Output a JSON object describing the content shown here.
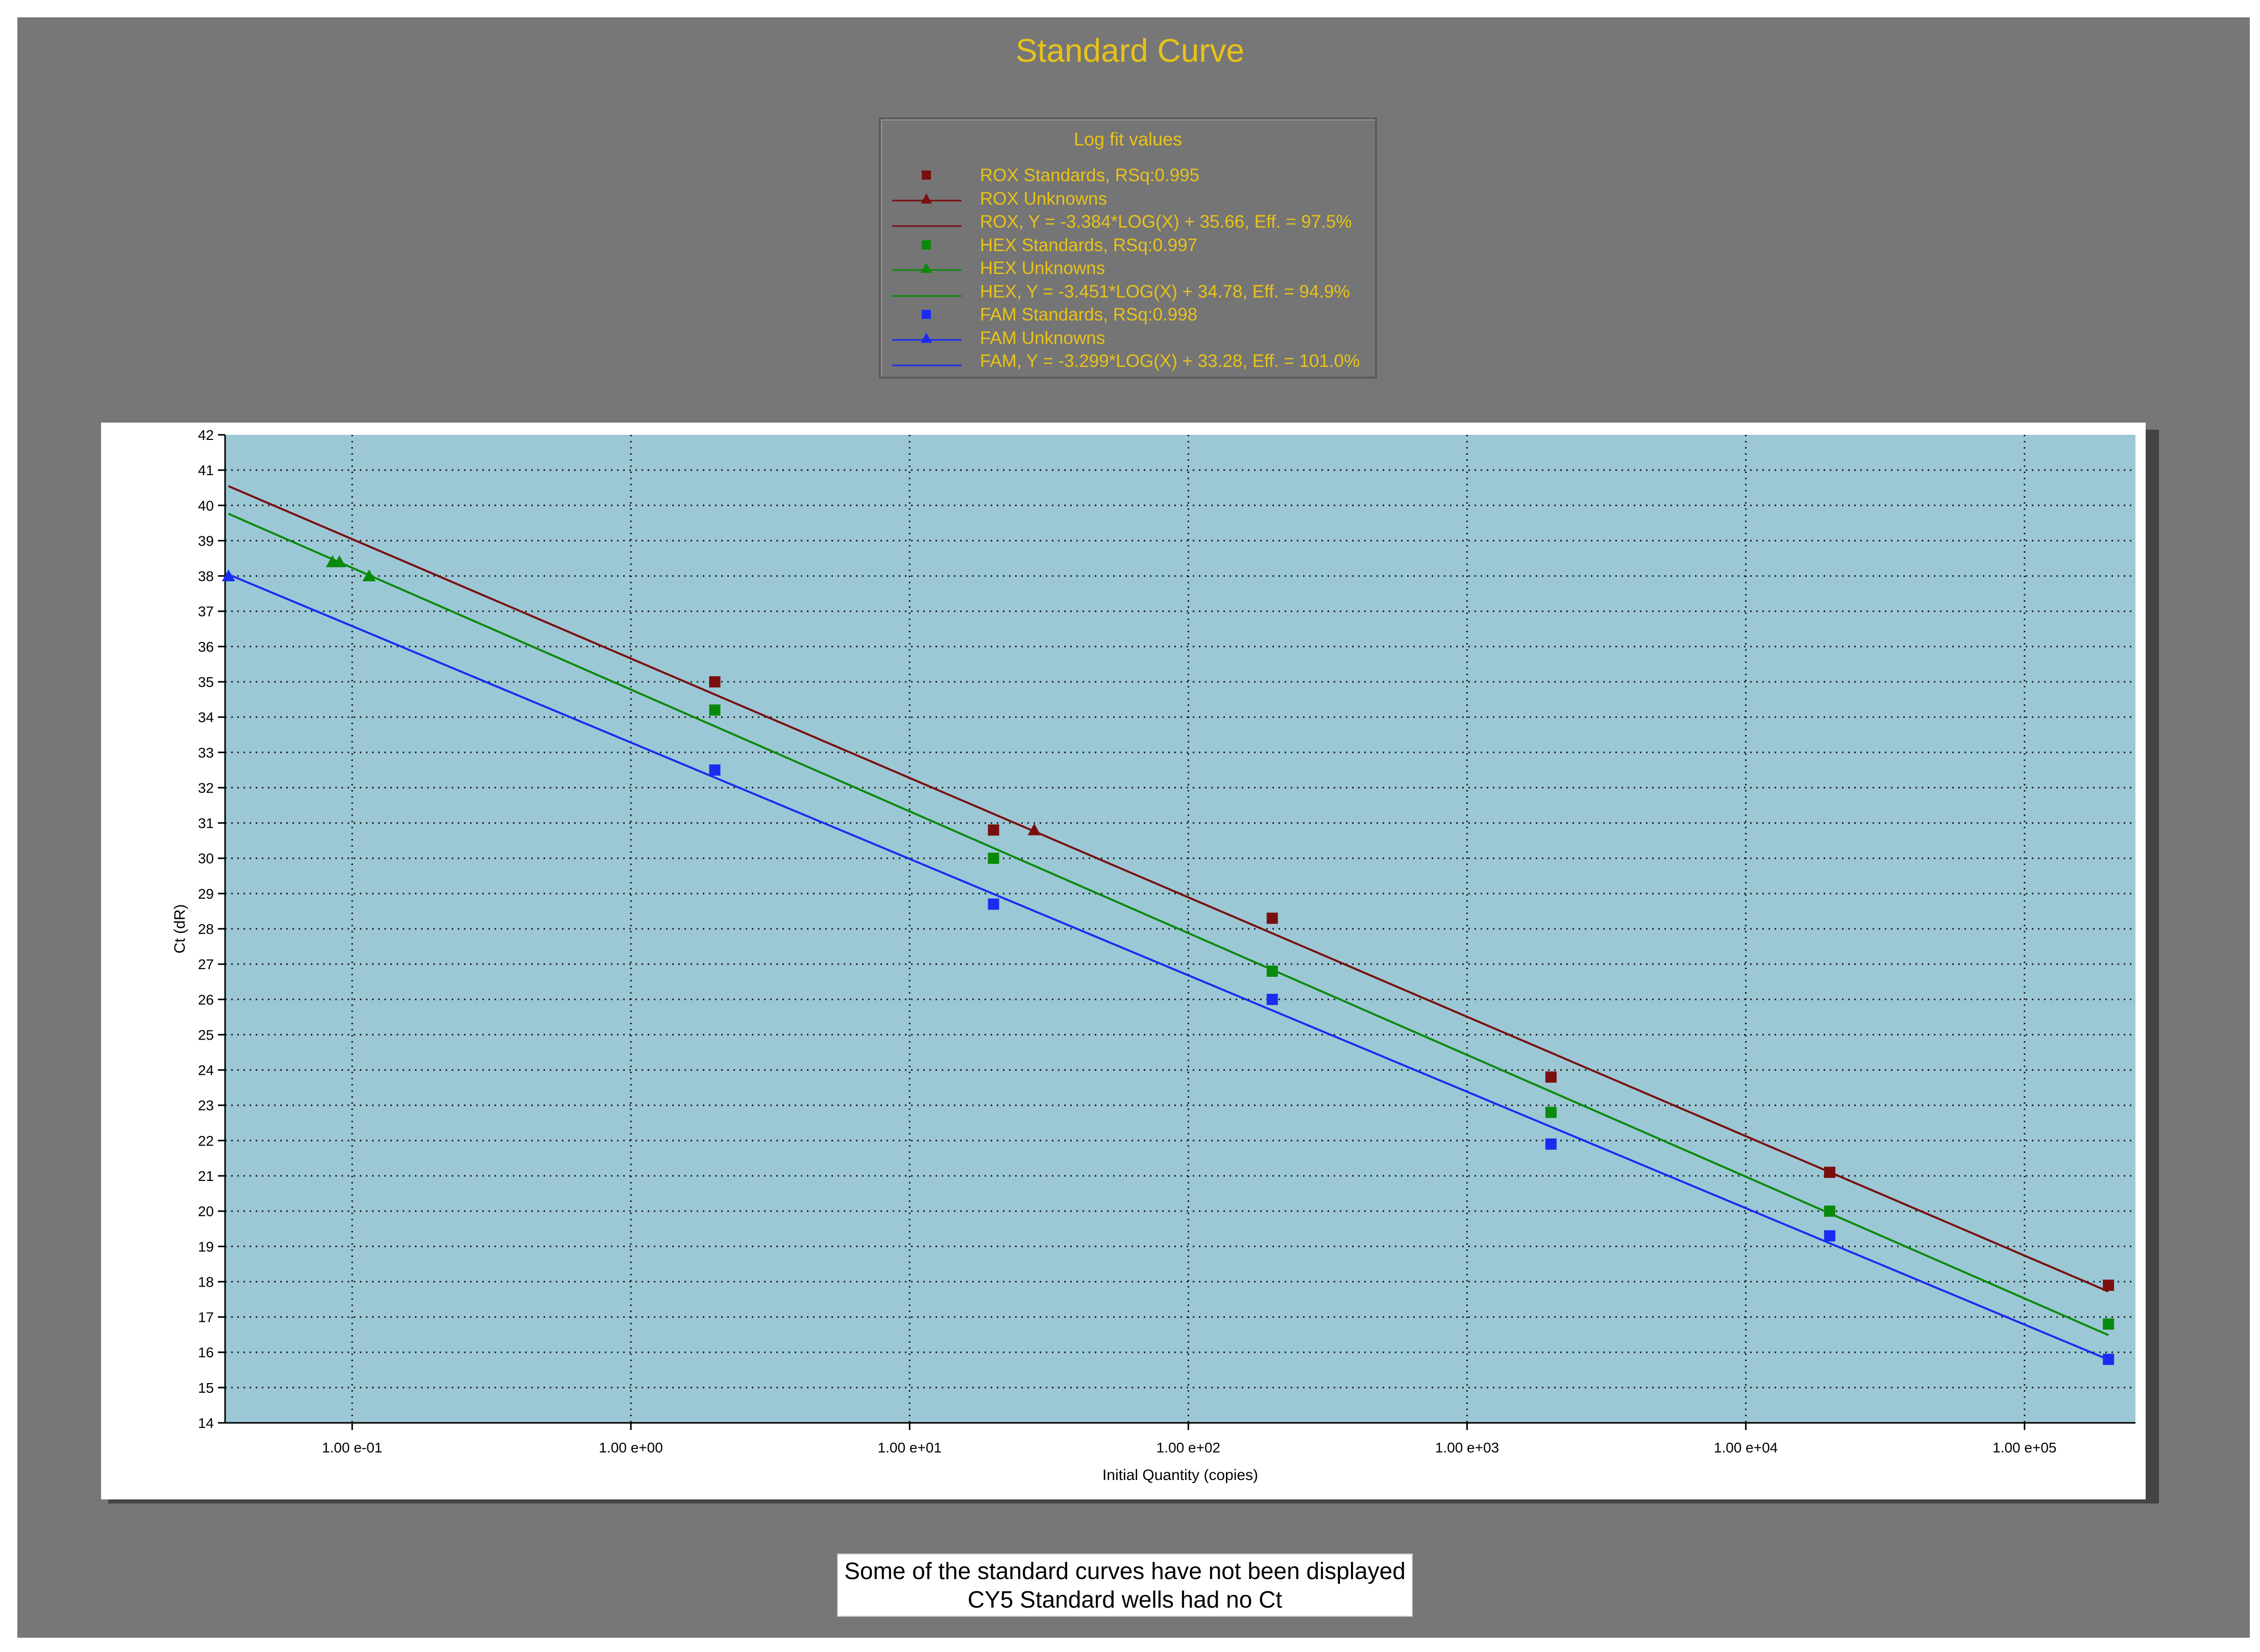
{
  "chart_data": {
    "type": "scatter",
    "title": "Standard Curve",
    "xlabel": "Initial Quantity (copies)",
    "ylabel": "Ct (dR)",
    "x_scale": "log",
    "xlim": [
      0.035,
      250000
    ],
    "ylim": [
      14,
      42
    ],
    "grid": true,
    "x_tick_values": [
      0.1,
      1,
      10,
      100,
      1000,
      10000,
      100000
    ],
    "x_tick_labels": [
      "1.00 e-01",
      "1.00 e+00",
      "1.00 e+01",
      "1.00 e+02",
      "1.00 e+03",
      "1.00 e+04",
      "1.00 e+05"
    ],
    "y_ticks": [
      14,
      15,
      16,
      17,
      18,
      19,
      20,
      21,
      22,
      23,
      24,
      25,
      26,
      27,
      28,
      29,
      30,
      31,
      32,
      33,
      34,
      35,
      36,
      37,
      38,
      39,
      40,
      41,
      42
    ],
    "legend_title": "Log fit values",
    "legend_placement": "top-center",
    "series": [
      {
        "name": "ROX Standards, RSq:0.995",
        "kind": "points",
        "marker": "square",
        "color": "#7a0f0f",
        "points": [
          [
            2,
            35.0
          ],
          [
            20,
            30.8
          ],
          [
            200,
            28.3
          ],
          [
            2000,
            23.8
          ],
          [
            20000,
            21.1
          ],
          [
            200000,
            17.9
          ]
        ]
      },
      {
        "name": "ROX Unknowns",
        "kind": "points",
        "marker": "triangle",
        "color": "#7a0f0f",
        "points": [
          [
            28,
            30.8
          ]
        ]
      },
      {
        "name": "ROX, Y = -3.384*LOG(X) + 35.66, Eff. = 97.5%",
        "kind": "fit",
        "color": "#7a0f0f",
        "slope": -3.384,
        "intercept": 35.66,
        "x_range": [
          0.036,
          200000
        ]
      },
      {
        "name": "HEX Standards, RSq:0.997",
        "kind": "points",
        "marker": "square",
        "color": "#0a8a0a",
        "points": [
          [
            2,
            34.2
          ],
          [
            20,
            30.0
          ],
          [
            200,
            26.8
          ],
          [
            2000,
            22.8
          ],
          [
            20000,
            20.0
          ],
          [
            200000,
            16.8
          ]
        ]
      },
      {
        "name": "HEX Unknowns",
        "kind": "points",
        "marker": "triangle",
        "color": "#0a8a0a",
        "points": [
          [
            0.085,
            38.4
          ],
          [
            0.09,
            38.4
          ],
          [
            0.115,
            38.0
          ]
        ]
      },
      {
        "name": "HEX, Y = -3.451*LOG(X) + 34.78, Eff. = 94.9%",
        "kind": "fit",
        "color": "#0a8a0a",
        "slope": -3.451,
        "intercept": 34.78,
        "x_range": [
          0.036,
          200000
        ]
      },
      {
        "name": "FAM Standards, RSq:0.998",
        "kind": "points",
        "marker": "square",
        "color": "#1a2cf0",
        "points": [
          [
            2,
            32.5
          ],
          [
            20,
            28.7
          ],
          [
            200,
            26.0
          ],
          [
            2000,
            21.9
          ],
          [
            20000,
            19.3
          ],
          [
            200000,
            15.8
          ]
        ]
      },
      {
        "name": "FAM Unknowns",
        "kind": "points",
        "marker": "triangle",
        "color": "#1a2cf0",
        "points": [
          [
            0.036,
            38.0
          ]
        ]
      },
      {
        "name": "FAM, Y = -3.299*LOG(X) + 33.28, Eff. = 101.0%",
        "kind": "fit",
        "color": "#1a2cf0",
        "slope": -3.299,
        "intercept": 33.28,
        "x_range": [
          0.036,
          200000
        ]
      }
    ]
  },
  "colors": {
    "background": "#777777",
    "plot_background": "#9cc8d6",
    "title_text": "#e8c21a"
  },
  "note": {
    "line1": "Some of the standard curves have not been displayed",
    "line2": "CY5 Standard wells had no Ct"
  }
}
